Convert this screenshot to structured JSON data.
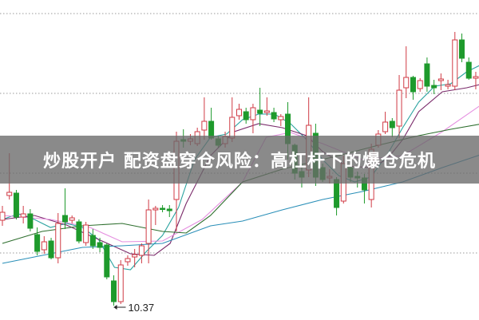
{
  "title": "炒股开户 配资盘穿仓风险：高杠杆下的爆仓危机",
  "chart_data": {
    "type": "candlestick",
    "grid": true,
    "ylim": [
      10.19,
      14.2
    ],
    "colors": {
      "up": "#d03a44",
      "down": "#1e9a2c"
    },
    "low_label": "10.37",
    "low_index": 16,
    "candles": [
      [
        11.44,
        11.54,
        11.62,
        11.37
      ],
      [
        11.75,
        11.79,
        12.28,
        11.7
      ],
      [
        11.78,
        11.48,
        11.82,
        11.45
      ],
      [
        11.48,
        11.52,
        11.62,
        11.4
      ],
      [
        11.52,
        11.34,
        11.58,
        11.3
      ],
      [
        11.26,
        11.05,
        11.35,
        11.0
      ],
      [
        11.07,
        11.17,
        11.24,
        11.02
      ],
      [
        11.18,
        10.97,
        11.22,
        10.95
      ],
      [
        10.97,
        11.4,
        11.53,
        10.9
      ],
      [
        11.5,
        11.42,
        11.84,
        11.33
      ],
      [
        11.44,
        11.47,
        11.5,
        11.4
      ],
      [
        11.42,
        11.18,
        11.45,
        11.15
      ],
      [
        11.16,
        11.38,
        11.42,
        11.12
      ],
      [
        11.25,
        11.12,
        11.33,
        11.08
      ],
      [
        11.16,
        11.1,
        11.22,
        11.04
      ],
      [
        11.13,
        10.73,
        11.15,
        10.7
      ],
      [
        10.68,
        10.42,
        10.75,
        10.37
      ],
      [
        10.42,
        10.88,
        10.94,
        10.39
      ],
      [
        10.92,
        10.96,
        11.0,
        10.87
      ],
      [
        10.98,
        11.01,
        11.08,
        10.85
      ],
      [
        11.0,
        11.12,
        11.15,
        10.9
      ],
      [
        11.15,
        11.57,
        11.7,
        10.9
      ],
      [
        11.57,
        11.59,
        11.62,
        11.38
      ],
      [
        11.59,
        11.58,
        11.63,
        11.54
      ],
      [
        11.58,
        11.56,
        11.63,
        11.48
      ],
      [
        11.7,
        12.43,
        12.55,
        11.3
      ],
      [
        12.45,
        12.43,
        12.58,
        12.35
      ],
      [
        12.43,
        12.46,
        12.52,
        12.38
      ],
      [
        12.4,
        12.55,
        12.6,
        12.37
      ],
      [
        12.57,
        12.68,
        12.98,
        12.45
      ],
      [
        12.68,
        12.47,
        12.85,
        12.45
      ],
      [
        12.46,
        12.38,
        12.5,
        12.35
      ],
      [
        12.4,
        12.49,
        12.55,
        12.35
      ],
      [
        12.47,
        12.73,
        12.98,
        12.42
      ],
      [
        12.75,
        12.83,
        12.9,
        12.7
      ],
      [
        12.8,
        12.7,
        12.85,
        12.65
      ],
      [
        12.7,
        12.85,
        12.9,
        12.53
      ],
      [
        12.82,
        12.78,
        13.1,
        12.62
      ],
      [
        12.79,
        12.81,
        12.98,
        12.75
      ],
      [
        12.79,
        12.71,
        12.85,
        12.67
      ],
      [
        12.7,
        12.74,
        12.77,
        12.62
      ],
      [
        12.77,
        12.4,
        12.92,
        12.2
      ],
      [
        12.38,
        12.03,
        12.4,
        11.95
      ],
      [
        12.05,
        11.98,
        12.15,
        11.85
      ],
      [
        12.07,
        12.63,
        12.98,
        11.98
      ],
      [
        12.53,
        11.98,
        12.65,
        11.87
      ],
      [
        12.1,
        11.95,
        12.15,
        11.92
      ],
      [
        11.97,
        11.99,
        12.08,
        11.9
      ],
      [
        11.95,
        11.6,
        11.98,
        11.5
      ],
      [
        11.68,
        12.15,
        12.25,
        11.65
      ],
      [
        12.1,
        11.98,
        12.15,
        11.92
      ],
      [
        11.99,
        11.97,
        12.05,
        11.85
      ],
      [
        11.97,
        11.82,
        12.02,
        11.65
      ],
      [
        11.7,
        12.33,
        12.4,
        11.6
      ],
      [
        12.38,
        12.52,
        12.57,
        12.35
      ],
      [
        12.55,
        12.67,
        12.8,
        12.52
      ],
      [
        12.68,
        12.6,
        12.72,
        12.48
      ],
      [
        12.62,
        13.07,
        13.26,
        12.47
      ],
      [
        13.1,
        13.23,
        13.62,
        12.97
      ],
      [
        13.23,
        13.05,
        13.25,
        12.95
      ],
      [
        13.09,
        13.19,
        13.22,
        13.05
      ],
      [
        13.4,
        13.12,
        13.48,
        13.05
      ],
      [
        13.13,
        13.1,
        13.2,
        13.02
      ],
      [
        13.19,
        13.21,
        13.28,
        13.07
      ],
      [
        13.12,
        13.14,
        13.2,
        13.08
      ],
      [
        13.12,
        13.7,
        13.8,
        13.07
      ],
      [
        13.7,
        13.47,
        13.78,
        13.42
      ],
      [
        13.42,
        13.22,
        13.48,
        13.2
      ],
      [
        13.22,
        13.24,
        13.3,
        13.08
      ]
    ],
    "moving_averages": [
      {
        "color": "#2aa3a0",
        "points": [
          [
            0,
            11.45
          ],
          [
            2.3,
            11.52
          ],
          [
            4.6,
            11.45
          ],
          [
            6.9,
            11.35
          ],
          [
            9.2,
            11.4
          ],
          [
            11.5,
            11.35
          ],
          [
            13.8,
            11.2
          ],
          [
            16.1,
            10.85
          ],
          [
            18.4,
            10.82
          ],
          [
            20.7,
            11.05
          ],
          [
            23,
            11.25
          ],
          [
            25.3,
            11.6
          ],
          [
            27.6,
            12.2
          ],
          [
            29.9,
            12.48
          ],
          [
            32.2,
            12.52
          ],
          [
            34.5,
            12.7
          ],
          [
            36.8,
            12.77
          ],
          [
            39.1,
            12.77
          ],
          [
            41.4,
            12.65
          ],
          [
            43.7,
            12.45
          ],
          [
            46,
            12.2
          ],
          [
            48.3,
            12.0
          ],
          [
            50.6,
            11.92
          ],
          [
            52.9,
            11.98
          ],
          [
            55.2,
            12.25
          ],
          [
            57.5,
            12.6
          ],
          [
            59.8,
            12.92
          ],
          [
            62.1,
            13.12
          ],
          [
            64.4,
            13.15
          ],
          [
            66.7,
            13.3
          ],
          [
            69,
            13.4
          ]
        ]
      },
      {
        "color": "#7a2a6a",
        "points": [
          [
            0,
            11.45
          ],
          [
            4.6,
            11.5
          ],
          [
            9.2,
            11.38
          ],
          [
            13.8,
            11.2
          ],
          [
            18.4,
            11.02
          ],
          [
            21.8,
            11.0
          ],
          [
            24.1,
            11.15
          ],
          [
            26.4,
            11.65
          ],
          [
            29.9,
            12.25
          ],
          [
            33.3,
            12.55
          ],
          [
            36.8,
            12.65
          ],
          [
            40.2,
            12.6
          ],
          [
            43.7,
            12.5
          ],
          [
            46,
            12.3
          ],
          [
            49.4,
            12.12
          ],
          [
            52.9,
            12.1
          ],
          [
            55.2,
            12.2
          ],
          [
            57.5,
            12.45
          ],
          [
            59.8,
            12.8
          ],
          [
            63.2,
            13.05
          ],
          [
            66.7,
            13.1
          ],
          [
            69,
            13.15
          ]
        ]
      },
      {
        "color": "#e58fe0",
        "points": [
          [
            0,
            11.5
          ],
          [
            6.9,
            11.45
          ],
          [
            12.6,
            11.35
          ],
          [
            17.2,
            11.17
          ],
          [
            23,
            11.18
          ],
          [
            28.7,
            11.45
          ],
          [
            34.5,
            11.92
          ],
          [
            37.9,
            12.48
          ],
          [
            41.4,
            12.54
          ],
          [
            46,
            12.4
          ],
          [
            51.7,
            12.2
          ],
          [
            57.5,
            12.25
          ],
          [
            63.2,
            12.55
          ],
          [
            69,
            12.9
          ]
        ]
      },
      {
        "color": "#2d6e2d",
        "points": [
          [
            0,
            11.15
          ],
          [
            5.7,
            11.3
          ],
          [
            11.5,
            11.37
          ],
          [
            17.2,
            11.4
          ],
          [
            23,
            11.3
          ],
          [
            26.4,
            11.28
          ],
          [
            29.9,
            11.5
          ],
          [
            34.5,
            11.92
          ],
          [
            40.2,
            12.08
          ],
          [
            48.3,
            12.25
          ],
          [
            54,
            12.38
          ],
          [
            59.8,
            12.5
          ],
          [
            64.4,
            12.58
          ],
          [
            69,
            12.65
          ]
        ]
      },
      {
        "color": "#2a8fb8",
        "points": [
          [
            0,
            10.9
          ],
          [
            6.9,
            11.02
          ],
          [
            11.5,
            11.1
          ],
          [
            17.2,
            11.12
          ],
          [
            23,
            11.15
          ],
          [
            29.9,
            11.37
          ],
          [
            34.5,
            11.43
          ],
          [
            40.2,
            11.57
          ],
          [
            46,
            11.7
          ],
          [
            51.7,
            11.8
          ],
          [
            57.5,
            11.92
          ],
          [
            63.2,
            12.1
          ],
          [
            69,
            12.27
          ]
        ]
      }
    ],
    "gridlines": [
      14.03,
      13.03,
      12.03,
      11.03
    ]
  }
}
